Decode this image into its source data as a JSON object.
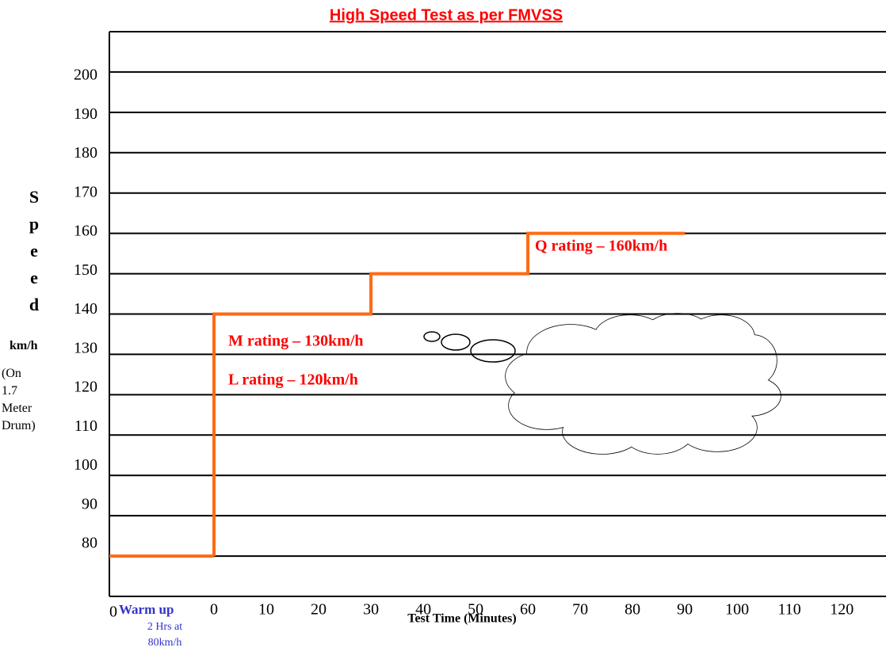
{
  "chart_data": {
    "type": "line",
    "title": "High Speed Test as per FMVSS",
    "y_label": "Speed",
    "y_unit": "km/h",
    "y_note": "(On 1.7 Meter Drum)",
    "x_label": "Test Time (Minutes)",
    "origin_label": "0",
    "warmup": {
      "label": "Warm up",
      "note": "2 Hrs at 80km/h",
      "value": 80
    },
    "x": [
      0,
      0,
      30,
      30,
      60,
      60,
      90
    ],
    "series": [
      {
        "color": "#ff6a13",
        "values": [
          80,
          140,
          140,
          150,
          150,
          160,
          160
        ]
      }
    ],
    "annotations": [
      "Q rating – 160km/h",
      "M rating – 130km/h",
      "L rating – 120km/h"
    ],
    "xlim": [
      -20,
      128
    ],
    "ylim": [
      70,
      210
    ],
    "xticks": [
      0,
      10,
      20,
      30,
      40,
      50,
      60,
      70,
      80,
      90,
      100,
      110,
      120
    ],
    "yticks": [
      80,
      90,
      100,
      110,
      120,
      130,
      140,
      150,
      160,
      170,
      180,
      190,
      200
    ],
    "grid": true
  }
}
